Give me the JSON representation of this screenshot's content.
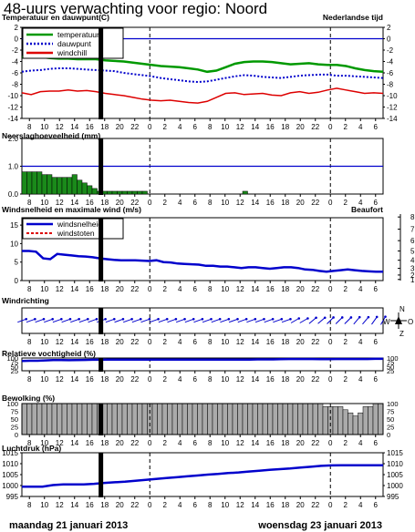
{
  "page": {
    "title": "48-uurs verwachting voor regio: Noord",
    "timezone_note": "Nederlandse tijd",
    "date_left": "maandag 21 januari 2013",
    "date_right": "woensdag 23 januari 2013",
    "colors": {
      "grid": "#000000",
      "dashed": "#000000",
      "now_bar": "#000000"
    }
  },
  "hour_ticks": [
    "8",
    "10",
    "12",
    "14",
    "16",
    "18",
    "20",
    "22",
    "0",
    "2",
    "4",
    "6",
    "8",
    "10",
    "12",
    "14",
    "16",
    "18",
    "20",
    "22",
    "0",
    "2",
    "4",
    "6"
  ],
  "now_hour": 10.5,
  "chart_data": [
    {
      "type": "line",
      "title": "Temperatuur en dauwpunt(C)",
      "y_ticks": [
        "2",
        "0",
        "-2",
        "-4",
        "-6",
        "-8",
        "-10",
        "-12",
        "-14"
      ],
      "ylim": [
        -14,
        2
      ],
      "reference_line": 0,
      "legend": [
        "temperatuur",
        "dauwpunt",
        "windchill"
      ],
      "colors": {
        "temperatuur": "#009900",
        "dauwpunt": "#0000cc",
        "windchill": "#dd0000"
      },
      "series": [
        {
          "name": "temperatuur",
          "values": [
            -3.2,
            -3.2,
            -3.2,
            -3.4,
            -3.5,
            -3.5,
            -3.6,
            -3.6,
            -3.6,
            -3.8,
            -3.9,
            -4.0,
            -4.2,
            -4.4,
            -4.6,
            -4.8,
            -4.9,
            -5.0,
            -5.2,
            -5.4,
            -5.8,
            -5.6,
            -5.0,
            -4.4,
            -4.1,
            -4.0,
            -4.0,
            -4.1,
            -4.3,
            -4.5,
            -4.4,
            -4.3,
            -4.5,
            -4.6,
            -4.6,
            -4.8,
            -5.2,
            -5.5,
            -5.7,
            -5.8
          ]
        },
        {
          "name": "dauwpunt",
          "values": [
            -5.8,
            -5.6,
            -5.5,
            -5.3,
            -5.2,
            -5.2,
            -5.3,
            -5.4,
            -5.5,
            -5.6,
            -5.7,
            -6.0,
            -6.2,
            -6.4,
            -6.6,
            -6.9,
            -7.1,
            -7.3,
            -7.5,
            -7.6,
            -7.5,
            -7.2,
            -6.9,
            -6.6,
            -6.4,
            -6.5,
            -6.7,
            -6.8,
            -6.9,
            -6.7,
            -6.5,
            -6.4,
            -6.3,
            -6.3,
            -6.5,
            -6.5,
            -6.6,
            -6.7,
            -6.8,
            -6.9
          ]
        },
        {
          "name": "windchill",
          "values": [
            -9.5,
            -9.8,
            -9.3,
            -9.2,
            -9.2,
            -9.0,
            -9.2,
            -9.1,
            -9.3,
            -9.6,
            -9.8,
            -10.0,
            -10.3,
            -10.6,
            -10.8,
            -10.9,
            -10.8,
            -11.0,
            -11.2,
            -11.3,
            -11.0,
            -10.3,
            -9.6,
            -9.5,
            -9.8,
            -9.7,
            -9.6,
            -9.9,
            -10.0,
            -9.5,
            -9.3,
            -9.6,
            -9.4,
            -9.0,
            -8.7,
            -9.0,
            -9.3,
            -9.6,
            -9.5,
            -9.6
          ]
        }
      ]
    },
    {
      "type": "bar",
      "title": "Neerslaghoeveelheid (mm)",
      "y_ticks": [
        "2.0",
        "1.0",
        "0.0"
      ],
      "ylim": [
        0,
        2
      ],
      "reference_line": 1.0,
      "colors": {
        "bars": "#1a8a1a"
      },
      "values": [
        0.8,
        0.8,
        0.8,
        0.8,
        0.7,
        0.7,
        0.6,
        0.6,
        0.6,
        0.6,
        0.7,
        0.5,
        0.4,
        0.3,
        0.2,
        0.1,
        0.1,
        0.1,
        0.1,
        0.1,
        0.1,
        0.1,
        0.1,
        0.1,
        0.1,
        0,
        0,
        0,
        0,
        0,
        0,
        0,
        0,
        0,
        0,
        0,
        0,
        0,
        0,
        0,
        0,
        0,
        0,
        0,
        0.1,
        0,
        0,
        0,
        0,
        0,
        0,
        0,
        0,
        0,
        0,
        0,
        0,
        0,
        0,
        0,
        0,
        0,
        0,
        0,
        0,
        0,
        0,
        0,
        0,
        0,
        0,
        0
      ]
    },
    {
      "type": "line",
      "title": "Windsnelheid en maximale wind (m/s)",
      "right_title": "Beaufort",
      "y_ticks": [
        "15",
        "10",
        "5",
        "0"
      ],
      "ylim": [
        0,
        17
      ],
      "beaufort_ticks": [
        "8",
        "7",
        "6",
        "5",
        "4",
        "3",
        "2",
        "1"
      ],
      "legend": [
        "windsnelheid",
        "windstoten"
      ],
      "colors": {
        "windsnelheid": "#0000cc",
        "windstoten": "#dd0000"
      },
      "series": [
        {
          "name": "windsnelheid",
          "values": [
            8.0,
            8.0,
            7.8,
            6.0,
            5.8,
            7.2,
            7.0,
            6.8,
            6.6,
            6.5,
            6.3,
            6.0,
            5.8,
            5.6,
            5.5,
            5.5,
            5.5,
            5.4,
            5.3,
            5.5,
            5.0,
            4.9,
            4.6,
            4.5,
            4.4,
            4.3,
            4.0,
            4.0,
            3.8,
            3.8,
            3.6,
            3.4,
            3.6,
            3.6,
            3.4,
            3.2,
            3.4,
            3.6,
            3.6,
            3.4,
            3.0,
            2.9,
            2.6,
            2.4,
            2.6,
            2.8,
            3.0,
            2.8,
            2.6,
            2.5,
            2.4,
            2.4
          ]
        },
        {
          "name": "windstoten",
          "values": []
        }
      ]
    },
    {
      "type": "line",
      "title": "Windrichting",
      "compass": {
        "n": "N",
        "w": "W",
        "o": "O",
        "z": "Z"
      },
      "colors": {
        "arrows": "#0000cc"
      },
      "directions_deg": [
        250,
        250,
        250,
        250,
        250,
        250,
        250,
        250,
        250,
        250,
        250,
        250,
        250,
        250,
        250,
        250,
        250,
        250,
        250,
        250,
        250,
        250,
        250,
        250,
        250,
        250,
        250,
        250,
        250,
        250,
        250,
        240,
        240,
        230,
        230,
        225,
        225,
        225,
        220,
        220,
        215,
        210
      ]
    },
    {
      "type": "line",
      "title": "Relatieve vochtigheid (%)",
      "y_ticks": [
        "100",
        "75",
        "50",
        "25"
      ],
      "ylim": [
        25,
        100
      ],
      "colors": {
        "line": "#0000cc"
      },
      "values": [
        83,
        84,
        84,
        86,
        88,
        88,
        87,
        88,
        89,
        90,
        90,
        91,
        91,
        91,
        91,
        91,
        91,
        91,
        91,
        91,
        91,
        91,
        91,
        91,
        91,
        91,
        91,
        91,
        91,
        91,
        92,
        92,
        92,
        93,
        94,
        94,
        94,
        94,
        93,
        93,
        94,
        94,
        94,
        94,
        94,
        95,
        95
      ]
    },
    {
      "type": "bar",
      "title": "Bewolking (%)",
      "y_ticks": [
        "100",
        "75",
        "50",
        "25",
        "0"
      ],
      "ylim": [
        0,
        100
      ],
      "colors": {
        "bars": "#aaaaaa"
      },
      "values": [
        100,
        100,
        100,
        100,
        100,
        100,
        100,
        100,
        100,
        100,
        100,
        100,
        100,
        100,
        100,
        100,
        100,
        100,
        100,
        100,
        100,
        100,
        100,
        100,
        100,
        100,
        100,
        100,
        100,
        100,
        100,
        100,
        100,
        100,
        100,
        100,
        100,
        100,
        100,
        100,
        100,
        100,
        100,
        100,
        100,
        100,
        100,
        100,
        100,
        100,
        100,
        100,
        100,
        100,
        100,
        100,
        100,
        100,
        100,
        100,
        90,
        90,
        90,
        90,
        80,
        70,
        60,
        70,
        90,
        90,
        100,
        100
      ]
    },
    {
      "type": "line",
      "title": "Luchtdruk (hPa)",
      "y_ticks": [
        "1015",
        "1010",
        "1005",
        "1000",
        "995"
      ],
      "ylim": [
        995,
        1015
      ],
      "colors": {
        "line": "#0000cc"
      },
      "values": [
        999.5,
        999.5,
        999.5,
        1000.2,
        1000.5,
        1000.5,
        1000.5,
        1000.8,
        1001.2,
        1001.5,
        1001.8,
        1002.2,
        1002.6,
        1003.0,
        1003.4,
        1003.8,
        1004.2,
        1004.6,
        1005.0,
        1005.3,
        1005.7,
        1006.0,
        1006.4,
        1006.8,
        1007.2,
        1007.5,
        1007.8,
        1008.2,
        1008.6,
        1009.0,
        1009.2,
        1009.3,
        1009.3,
        1009.3,
        1009.3,
        1009.3
      ]
    }
  ]
}
